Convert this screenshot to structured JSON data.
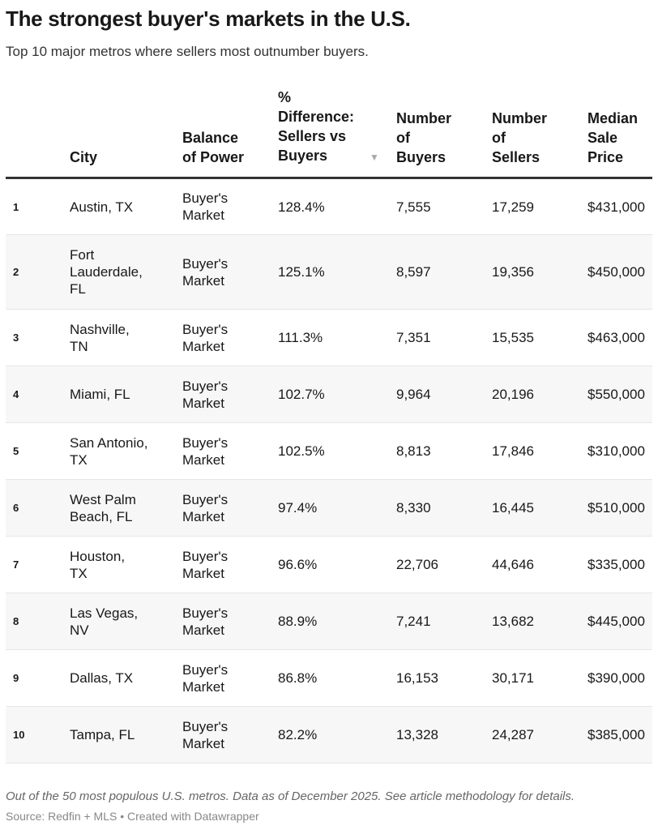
{
  "title": "The strongest buyer's markets in the U.S.",
  "subtitle": "Top 10 major metros where sellers most outnumber buyers.",
  "chart_data": {
    "type": "table",
    "columns": [
      "",
      "City",
      "Balance of Power",
      "% Difference: Sellers vs Buyers",
      "Number of Buyers",
      "Number of Sellers",
      "Median Sale Price"
    ],
    "sort_indicator": "▼",
    "rows": [
      {
        "rank": "1",
        "city": "Austin, TX",
        "balance": "Buyer's Market",
        "pct": "128.4%",
        "buyers": "7,555",
        "sellers": "17,259",
        "price": "$431,000"
      },
      {
        "rank": "2",
        "city": "Fort Lauderdale, FL",
        "balance": "Buyer's Market",
        "pct": "125.1%",
        "buyers": "8,597",
        "sellers": "19,356",
        "price": "$450,000"
      },
      {
        "rank": "3",
        "city": "Nashville, TN",
        "balance": "Buyer's Market",
        "pct": "111.3%",
        "buyers": "7,351",
        "sellers": "15,535",
        "price": "$463,000"
      },
      {
        "rank": "4",
        "city": "Miami, FL",
        "balance": "Buyer's Market",
        "pct": "102.7%",
        "buyers": "9,964",
        "sellers": "20,196",
        "price": "$550,000"
      },
      {
        "rank": "5",
        "city": "San Antonio, TX",
        "balance": "Buyer's Market",
        "pct": "102.5%",
        "buyers": "8,813",
        "sellers": "17,846",
        "price": "$310,000"
      },
      {
        "rank": "6",
        "city": "West Palm Beach, FL",
        "balance": "Buyer's Market",
        "pct": "97.4%",
        "buyers": "8,330",
        "sellers": "16,445",
        "price": "$510,000"
      },
      {
        "rank": "7",
        "city": "Houston, TX",
        "balance": "Buyer's Market",
        "pct": "96.6%",
        "buyers": "22,706",
        "sellers": "44,646",
        "price": "$335,000"
      },
      {
        "rank": "8",
        "city": "Las Vegas, NV",
        "balance": "Buyer's Market",
        "pct": "88.9%",
        "buyers": "7,241",
        "sellers": "13,682",
        "price": "$445,000"
      },
      {
        "rank": "9",
        "city": "Dallas, TX",
        "balance": "Buyer's Market",
        "pct": "86.8%",
        "buyers": "16,153",
        "sellers": "30,171",
        "price": "$390,000"
      },
      {
        "rank": "10",
        "city": "Tampa, FL",
        "balance": "Buyer's Market",
        "pct": "82.2%",
        "buyers": "13,328",
        "sellers": "24,287",
        "price": "$385,000"
      }
    ]
  },
  "notes": "Out of the 50 most populous U.S. metros. Data as of December 2025. See article methodology for details.",
  "source": "Source: Redfin + MLS • Created with Datawrapper"
}
